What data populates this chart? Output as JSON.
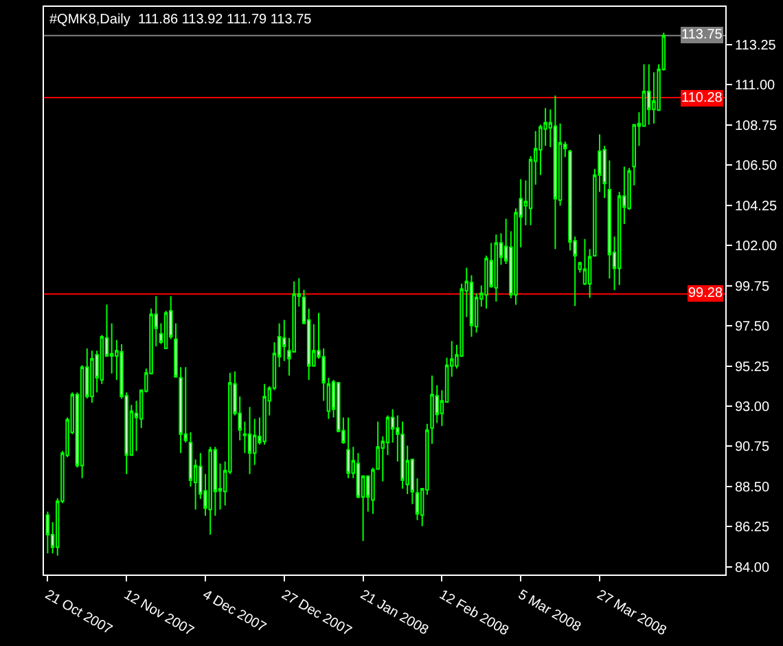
{
  "chart_data": {
    "type": "candlestick",
    "title": "#QMK8,Daily  111.86 113.92 111.79 113.75",
    "categories": [
      "21 Oct 2007",
      null,
      null,
      null,
      null,
      null,
      null,
      null,
      null,
      null,
      null,
      null,
      null,
      null,
      null,
      null,
      "12 Nov 2007",
      null,
      null,
      null,
      null,
      null,
      null,
      null,
      null,
      null,
      null,
      null,
      null,
      null,
      null,
      null,
      "4 Dec 2007",
      null,
      null,
      null,
      null,
      null,
      null,
      null,
      null,
      null,
      null,
      null,
      null,
      null,
      null,
      null,
      "27 Dec 2007",
      null,
      null,
      null,
      null,
      null,
      null,
      null,
      null,
      null,
      null,
      null,
      null,
      null,
      null,
      null,
      "21 Jan 2008",
      null,
      null,
      null,
      null,
      null,
      null,
      null,
      null,
      null,
      null,
      null,
      null,
      null,
      null,
      null,
      "12 Feb 2008",
      null,
      null,
      null,
      null,
      null,
      null,
      null,
      null,
      null,
      null,
      null,
      null,
      null,
      null,
      null,
      "5 Mar 2008",
      null,
      null,
      null,
      null,
      null,
      null,
      null,
      null,
      null,
      null,
      null,
      null,
      null,
      null,
      null,
      "27 Mar 2008",
      null,
      null,
      null,
      null,
      null,
      null,
      null,
      null,
      null,
      null,
      null,
      null,
      null
    ],
    "series": [
      {
        "color": "#00ff00",
        "ohlc": [
          [
            86.9,
            87.09,
            84.75,
            85.8
          ],
          [
            85.8,
            86.5,
            84.75,
            85.1
          ],
          [
            85.1,
            87.84,
            84.63,
            87.68
          ],
          [
            87.68,
            90.49,
            87.56,
            90.37
          ],
          [
            90.25,
            92.36,
            90.14,
            92.25
          ],
          [
            91.54,
            93.77,
            91.43,
            93.65
          ],
          [
            93.65,
            93.77,
            89.55,
            89.67
          ],
          [
            89.67,
            95.29,
            88.97,
            95.18
          ],
          [
            95.18,
            96.23,
            93.42,
            93.54
          ],
          [
            93.54,
            96.11,
            93.19,
            95.65
          ],
          [
            95.88,
            96.11,
            93.77,
            94.59
          ],
          [
            94.47,
            96.98,
            94.24,
            96.89
          ],
          [
            96.82,
            98.69,
            95.76,
            95.81
          ],
          [
            95.81,
            97.64,
            94.83,
            95.93
          ],
          [
            95.81,
            96.7,
            94.47,
            96.11
          ],
          [
            96.04,
            96.47,
            93.42,
            93.54
          ],
          [
            93.58,
            93.77,
            89.2,
            90.26
          ],
          [
            90.26,
            93.07,
            90.26,
            92.72
          ],
          [
            92.6,
            93.3,
            90.49,
            92.36
          ],
          [
            92.29,
            93.89,
            91.78,
            93.89
          ],
          [
            93.84,
            95.11,
            93.77,
            94.87
          ],
          [
            94.83,
            98.46,
            94.78,
            98.15
          ],
          [
            98.15,
            99.16,
            96.35,
            97.36
          ],
          [
            97.05,
            97.64,
            96.47,
            96.58
          ],
          [
            96.23,
            98.34,
            96.19,
            98.22
          ],
          [
            98.34,
            99.16,
            96.75,
            96.89
          ],
          [
            96.75,
            97.64,
            94.59,
            94.64
          ],
          [
            94.59,
            95.18,
            90.37,
            91.43
          ],
          [
            91.43,
            95.18,
            90.96,
            91.08
          ],
          [
            90.96,
            91.54,
            88.5,
            88.85
          ],
          [
            88.73,
            90.02,
            87.21,
            89.67
          ],
          [
            89.62,
            90.37,
            87.8,
            88.08
          ],
          [
            88.26,
            89.2,
            86.86,
            87.28
          ],
          [
            87.21,
            90.72,
            85.8,
            90.56
          ],
          [
            90.56,
            90.72,
            86.86,
            88.22
          ],
          [
            88.26,
            89.79,
            87.21,
            88.38
          ],
          [
            88.22,
            89.9,
            87.44,
            89.39
          ],
          [
            89.32,
            94.87,
            89.2,
            94.31
          ],
          [
            94.24,
            94.94,
            92.48,
            92.6
          ],
          [
            92.6,
            93.54,
            91.08,
            91.66
          ],
          [
            91.43,
            92.13,
            90.37,
            91.36
          ],
          [
            91.43,
            92.95,
            89.2,
            90.37
          ],
          [
            90.37,
            92.29,
            89.71,
            91.36
          ],
          [
            91.31,
            92.36,
            90.84,
            90.96
          ],
          [
            91.03,
            94.24,
            90.84,
            93.54
          ],
          [
            93.3,
            94.12,
            92.48,
            94.01
          ],
          [
            94.01,
            96.58,
            93.89,
            95.95
          ],
          [
            96.89,
            97.64,
            95.18,
            95.76
          ],
          [
            96.82,
            97.83,
            95.53,
            96.35
          ],
          [
            96.11,
            96.82,
            94.71,
            95.65
          ],
          [
            96.04,
            99.98,
            96.04,
            99.28
          ],
          [
            99.16,
            100.17,
            98.58,
            99.28
          ],
          [
            99.09,
            99.51,
            97.59,
            97.64
          ],
          [
            97.83,
            98.46,
            94.47,
            95.25
          ],
          [
            95.25,
            97.59,
            95.25,
            96.11
          ],
          [
            96.11,
            98.22,
            95.65,
            95.76
          ],
          [
            95.76,
            96.23,
            93.3,
            94.31
          ],
          [
            92.72,
            94.59,
            92.29,
            94.24
          ],
          [
            94.36,
            94.47,
            92.36,
            92.83
          ],
          [
            94.31,
            94.36,
            91.54,
            91.59
          ],
          [
            91.62,
            92.36,
            90.89,
            90.96
          ],
          [
            90.56,
            92.36,
            88.97,
            89.25
          ],
          [
            89.25,
            90.72,
            88.97,
            89.95
          ],
          [
            89.79,
            90.37,
            87.84,
            87.91
          ],
          [
            87.91,
            89.08,
            85.45,
            89.08
          ],
          [
            89.08,
            89.08,
            87.09,
            87.91
          ],
          [
            87.75,
            89.55,
            86.97,
            89.44
          ],
          [
            89.48,
            92.13,
            89.48,
            90.72
          ],
          [
            90.65,
            91.31,
            88.78,
            91.03
          ],
          [
            90.96,
            92.48,
            90.26,
            92.36
          ],
          [
            92.36,
            92.83,
            90.96,
            91.73
          ],
          [
            91.78,
            92.48,
            89.9,
            91.43
          ],
          [
            91.42,
            92.13,
            88.38,
            88.85
          ],
          [
            88.61,
            90.79,
            88.07,
            89.95
          ],
          [
            90.02,
            90.02,
            87.51,
            88.21
          ],
          [
            88.14,
            88.96,
            86.62,
            86.97
          ],
          [
            86.9,
            88.38,
            86.27,
            88.38
          ],
          [
            88.31,
            92.01,
            88.03,
            91.66
          ],
          [
            91.78,
            94.71,
            90.89,
            93.65
          ],
          [
            93.58,
            94.17,
            92.06,
            92.53
          ],
          [
            92.6,
            93.89,
            91.89,
            93.3
          ],
          [
            93.23,
            95.71,
            93.23,
            95.29
          ],
          [
            95.25,
            96.65,
            94.64,
            95.64
          ],
          [
            95.25,
            96.42,
            95.11,
            95.88
          ],
          [
            95.81,
            99.86,
            95.76,
            99.56
          ],
          [
            99.47,
            100.75,
            97.99,
            99.98
          ],
          [
            99.93,
            100.33,
            96.89,
            97.52
          ],
          [
            97.45,
            99.32,
            97.12,
            99.09
          ],
          [
            99.0,
            99.75,
            98.57,
            99.32
          ],
          [
            99.23,
            101.43,
            98.46,
            101.27
          ],
          [
            101.15,
            102.14,
            99.63,
            99.7
          ],
          [
            99.63,
            102.61,
            98.86,
            102.14
          ],
          [
            102.14,
            102.68,
            100.92,
            101.34
          ],
          [
            101.95,
            103.5,
            100.97,
            101.15
          ],
          [
            101.9,
            102.79,
            99.04,
            99.23
          ],
          [
            99.23,
            104.07,
            98.68,
            103.83
          ],
          [
            104.61,
            105.71,
            101.89,
            103.6
          ],
          [
            104.23,
            105.64,
            103.13,
            104.47
          ],
          [
            104.07,
            107.0,
            103.13,
            106.81
          ],
          [
            106.72,
            108.4,
            105.4,
            107.42
          ],
          [
            107.35,
            108.76,
            105.94,
            108.64
          ],
          [
            108.52,
            109.69,
            107.58,
            108.87
          ],
          [
            108.59,
            109.62,
            107.51,
            108.87
          ],
          [
            108.68,
            110.4,
            101.79,
            104.61
          ],
          [
            104.54,
            108.83,
            104.23,
            107.75
          ],
          [
            107.65,
            107.82,
            106.95,
            107.42
          ],
          [
            107.28,
            107.35,
            101.72,
            102.19
          ],
          [
            102.26,
            102.5,
            98.61,
            101.42
          ],
          [
            100.67,
            101.09,
            100.48,
            101.02
          ],
          [
            99.85,
            102.36,
            99.78,
            100.67
          ],
          [
            99.85,
            101.79,
            99.07,
            101.37
          ],
          [
            101.42,
            106.29,
            101.42,
            105.94
          ],
          [
            107.28,
            108.22,
            105.0,
            105.94
          ],
          [
            107.35,
            107.58,
            104.65,
            105.47
          ],
          [
            105.12,
            106.76,
            100.15,
            101.49
          ],
          [
            101.61,
            102.5,
            99.5,
            100.72
          ],
          [
            100.72,
            105.0,
            99.78,
            104.77
          ],
          [
            104.77,
            106.41,
            103.2,
            104.14
          ],
          [
            104.07,
            106.34,
            104.0,
            106.18
          ],
          [
            106.41,
            108.76,
            105.36,
            108.76
          ],
          [
            108.68,
            109.46,
            107.58,
            108.83
          ],
          [
            108.68,
            112.15,
            108.68,
            110.63
          ],
          [
            110.63,
            112.15,
            108.76,
            109.62
          ],
          [
            109.62,
            111.69,
            108.83,
            110.09
          ],
          [
            109.58,
            112.15,
            109.53,
            111.87
          ],
          [
            111.86,
            113.92,
            111.79,
            113.75
          ]
        ]
      }
    ],
    "ylim": [
      83.57,
      115.36
    ],
    "yticks": [
      113.25,
      {
        "value": 111,
        "label": "111.00"
      },
      108.75,
      {
        "value": 106.5,
        "label": "106.50"
      },
      104.25,
      {
        "value": 102,
        "label": "102.00"
      },
      99.75,
      {
        "value": 97.5,
        "label": "97.50"
      },
      95.25,
      {
        "value": 93,
        "label": "93.00"
      },
      90.75,
      {
        "value": 88.5,
        "label": "88.50"
      },
      86.25,
      {
        "value": 84,
        "label": "84.00"
      }
    ],
    "ref_lines": [
      {
        "axis": "y",
        "value": 113.75,
        "label": "113.75",
        "color": "#808080"
      },
      {
        "axis": "y",
        "value": 110.28,
        "label": "110.28",
        "color": "#ff0000"
      },
      {
        "axis": "y",
        "value": 99.28,
        "label": "99.28",
        "color": "#ff0000"
      }
    ],
    "grid": false,
    "legend": false
  }
}
